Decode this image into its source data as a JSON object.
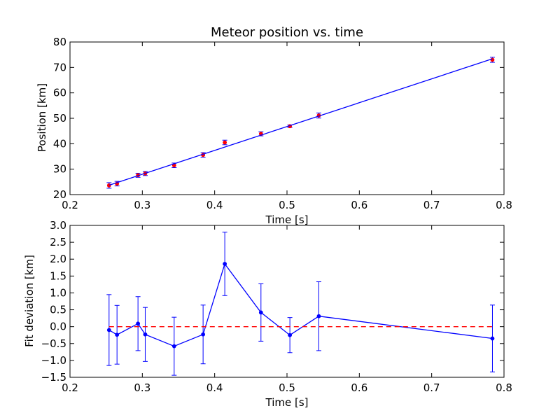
{
  "chart_data": [
    {
      "type": "scatter",
      "title": "Meteor position vs. time",
      "xlabel": "Time [s]",
      "ylabel": "Position [km]",
      "xlim": [
        0.2,
        0.8
      ],
      "ylim": [
        20,
        80
      ],
      "xticks": [
        "0.2",
        "0.3",
        "0.4",
        "0.5",
        "0.6",
        "0.7",
        "0.8"
      ],
      "yticks": [
        "20",
        "30",
        "40",
        "50",
        "60",
        "70",
        "80"
      ],
      "grid": false,
      "series": [
        {
          "kind": "points-with-errorbars",
          "color": "#ff0000",
          "x": [
            0.254,
            0.265,
            0.294,
            0.304,
            0.344,
            0.384,
            0.414,
            0.464,
            0.504,
            0.544,
            0.784
          ],
          "y": [
            23.6,
            24.3,
            27.6,
            28.3,
            31.5,
            35.6,
            40.5,
            43.9,
            46.9,
            51.1,
            73.0
          ],
          "yerr": [
            1.1,
            0.9,
            0.8,
            0.8,
            0.9,
            0.9,
            0.9,
            0.8,
            0.5,
            1.0,
            1.0
          ]
        },
        {
          "kind": "fit-line",
          "color": "#0000ff",
          "x": [
            0.254,
            0.784
          ],
          "y": [
            23.7,
            73.4
          ]
        }
      ]
    },
    {
      "type": "line",
      "title": "",
      "xlabel": "Time [s]",
      "ylabel": "Fit deviation [km]",
      "xlim": [
        0.2,
        0.8
      ],
      "ylim": [
        -1.5,
        3.0
      ],
      "xticks": [
        "0.2",
        "0.3",
        "0.4",
        "0.5",
        "0.6",
        "0.7",
        "0.8"
      ],
      "yticks": [
        "−1.5",
        "−1.0",
        "−0.5",
        "0.0",
        "0.5",
        "1.0",
        "1.5",
        "2.0",
        "2.5",
        "3.0"
      ],
      "grid": false,
      "series": [
        {
          "kind": "line-with-errorbars",
          "color": "#0000ff",
          "x": [
            0.254,
            0.265,
            0.294,
            0.304,
            0.344,
            0.384,
            0.414,
            0.464,
            0.504,
            0.544,
            0.784
          ],
          "y": [
            -0.1,
            -0.24,
            0.09,
            -0.23,
            -0.58,
            -0.23,
            1.86,
            0.42,
            -0.25,
            0.31,
            -0.35
          ],
          "yerr": [
            1.05,
            0.87,
            0.8,
            0.8,
            0.86,
            0.87,
            0.94,
            0.85,
            0.52,
            1.02,
            0.99
          ]
        },
        {
          "kind": "reference-line",
          "color": "#ff0000",
          "style": "dashed",
          "x": [
            0.254,
            0.784
          ],
          "y": [
            0,
            0
          ]
        }
      ]
    }
  ]
}
